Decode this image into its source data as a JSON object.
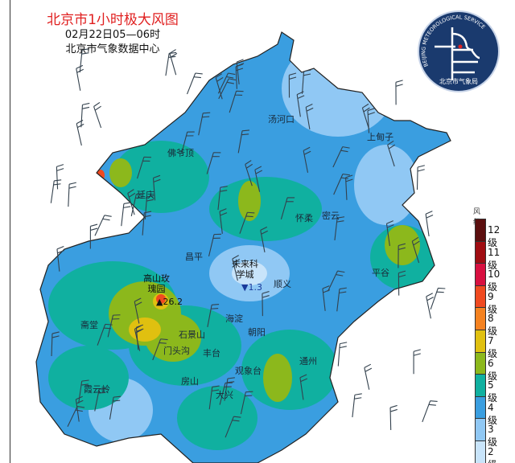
{
  "header": {
    "title": "北京市1小时极大风图",
    "time": "02月22日05—06时",
    "source": "北京市气象数据中心"
  },
  "logo": {
    "text_ring": "BEIJING METEOROLOGICAL SERVICE",
    "text_cn": "北京市气象局",
    "colors": {
      "bg": "#1a3a6e",
      "ring": "#ffffff"
    }
  },
  "places": [
    {
      "name": "汤河口"
    },
    {
      "name": "上甸子"
    },
    {
      "name": "佛爷顶"
    },
    {
      "name": "延庆"
    },
    {
      "name": "怀柔"
    },
    {
      "name": "密云"
    },
    {
      "name": "昌平"
    },
    {
      "name": "顺义"
    },
    {
      "name": "平谷"
    },
    {
      "name": "斋堂"
    },
    {
      "name": "海淀"
    },
    {
      "name": "朝阳"
    },
    {
      "name": "石景山"
    },
    {
      "name": "门头沟"
    },
    {
      "name": "丰台"
    },
    {
      "name": "观象台"
    },
    {
      "name": "通州"
    },
    {
      "name": "房山"
    },
    {
      "name": "大兴"
    },
    {
      "name": "霞云岭"
    }
  ],
  "stations": {
    "max": {
      "name_l1": "高山玫",
      "name_l2": "瑰园",
      "marker": "▲",
      "value": "26.2",
      "color": "#111111"
    },
    "min": {
      "name_l1": "未来科",
      "name_l2": "学城",
      "marker": "▼",
      "value": "1.3"
    }
  },
  "legend": {
    "title": "风级",
    "levels": [
      {
        "label": "12级",
        "color": "#5c0f0f"
      },
      {
        "label": "11级",
        "color": "#a00d12"
      },
      {
        "label": "10级",
        "color": "#d81040"
      },
      {
        "label": "9级",
        "color": "#f04a20"
      },
      {
        "label": "8级",
        "color": "#f58220"
      },
      {
        "label": "7级",
        "color": "#e0c010"
      },
      {
        "label": "6级",
        "color": "#8cb81c"
      },
      {
        "label": "5级",
        "color": "#10b0a0"
      },
      {
        "label": "4级",
        "color": "#3a9ee0"
      },
      {
        "label": "3级",
        "color": "#90c8f4"
      },
      {
        "label": "2级",
        "color": "#c8e4fa"
      }
    ]
  }
}
